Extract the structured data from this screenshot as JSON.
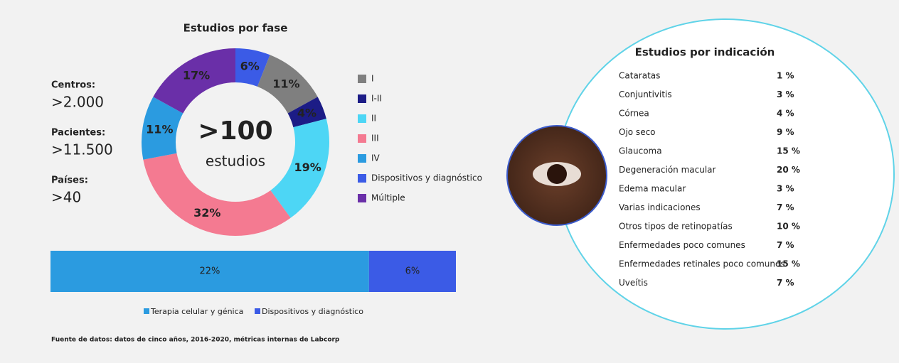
{
  "stats": [
    {
      "label": "Centros:",
      "value": ">2.000"
    },
    {
      "label": "Pacientes:",
      "value": ">11.500"
    },
    {
      "label": "Países:",
      "value": ">40"
    }
  ],
  "chart_data": [
    {
      "type": "donut",
      "title": "Estudios por fase",
      "center_value": ">100",
      "center_label": "estudios",
      "categories": [
        "I",
        "I-II",
        "II",
        "III",
        "IV",
        "Dispositivos y diagnóstico",
        "Múltiple"
      ],
      "values": [
        11,
        4,
        19,
        32,
        11,
        6,
        17
      ],
      "value_labels": [
        "11%",
        "4%",
        "19%",
        "32%",
        "11%",
        "6%",
        "17%"
      ],
      "colors": [
        "#7f7f7f",
        "#1c1c86",
        "#4dd6f5",
        "#f47a91",
        "#2b9be0",
        "#3b5be6",
        "#6a2fa8"
      ]
    },
    {
      "type": "stacked-bar",
      "xlim": [
        0,
        28
      ],
      "series": [
        {
          "name": "Terapia celular y génica",
          "color": "#2b9be0",
          "values": [
            22
          ],
          "value_labels": [
            "22%"
          ]
        },
        {
          "name": "Dispositivos y diagnóstico",
          "color": "#3b5be6",
          "values": [
            6
          ],
          "value_labels": [
            "6%"
          ]
        }
      ]
    }
  ],
  "indication": {
    "title": "Estudios por indicación",
    "rows": [
      [
        "Cataratas",
        "1 %"
      ],
      [
        "Conjuntivitis",
        "3 %"
      ],
      [
        "Córnea",
        "4 %"
      ],
      [
        "Ojo seco",
        "9 %"
      ],
      [
        "Glaucoma",
        "15 %"
      ],
      [
        "Degeneración macular",
        "20 %"
      ],
      [
        "Edema macular",
        "3 %"
      ],
      [
        "Varias indicaciones",
        "7 %"
      ],
      [
        "Otros tipos de retinopatías",
        "10 %"
      ],
      [
        "Enfermedades poco comunes",
        "7 %"
      ],
      [
        "Enfermedades retinales poco comunes",
        "15 %"
      ],
      [
        "Uveítis",
        "7 %"
      ]
    ]
  },
  "source": "Fuente de datos: datos de cinco años, 2016-2020, métricas internas de Labcorp"
}
